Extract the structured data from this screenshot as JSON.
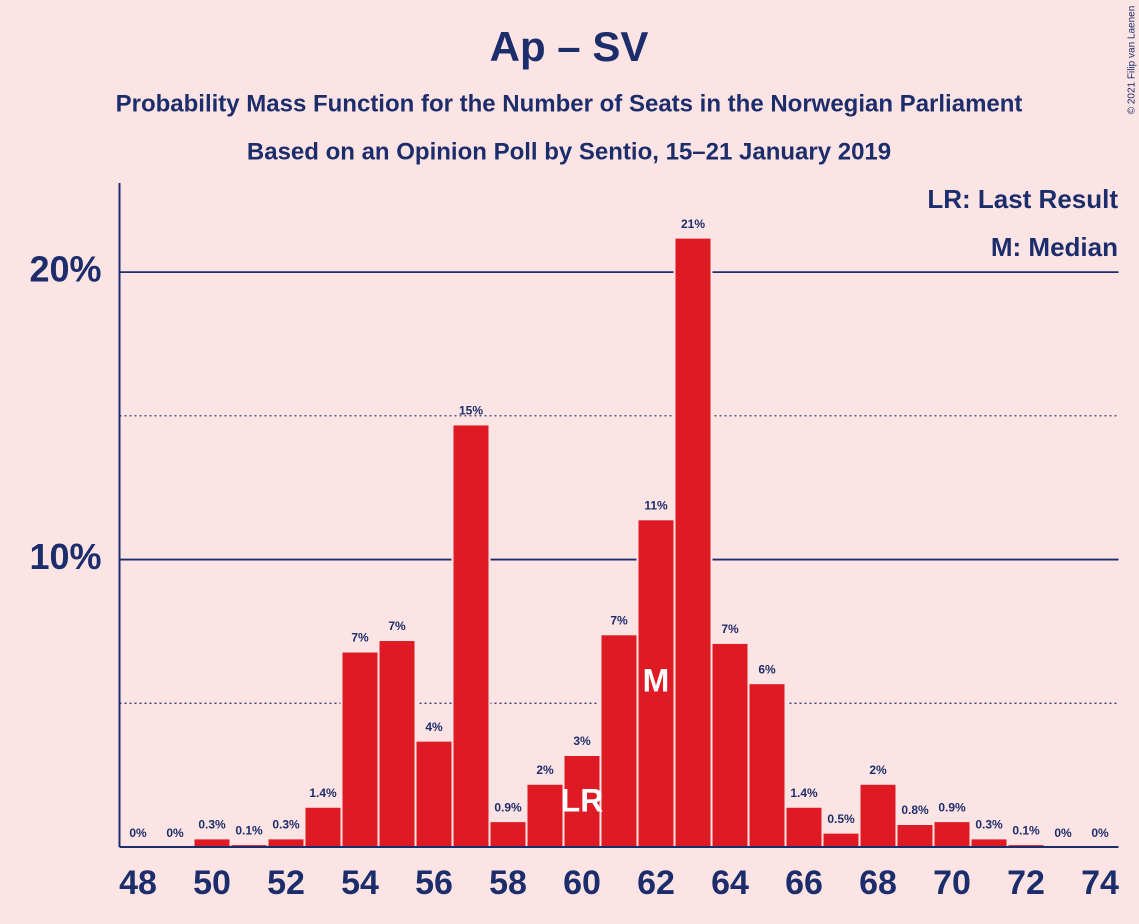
{
  "chart_data": {
    "type": "bar",
    "title": "Ap – SV",
    "subtitle": "Probability Mass Function for the Number of Seats in the Norwegian Parliament",
    "subtitle2": "Based on an Opinion Poll by Sentio, 15–21 January 2019",
    "copyright": "© 2021 Filip van Laenen",
    "legend": [
      "LR: Last Result",
      "M: Median"
    ],
    "legend_position": "top-right",
    "x": [
      48,
      49,
      50,
      51,
      52,
      53,
      54,
      55,
      56,
      57,
      58,
      59,
      60,
      61,
      62,
      63,
      64,
      65,
      66,
      67,
      68,
      69,
      70,
      71,
      72,
      73,
      74
    ],
    "values": [
      0,
      0,
      0.3,
      0.1,
      0.3,
      1.4,
      6.8,
      7.2,
      3.7,
      14.7,
      0.9,
      2.2,
      3.2,
      7.4,
      11.4,
      21.2,
      7.1,
      5.7,
      1.4,
      0.5,
      2.2,
      0.8,
      0.9,
      0.3,
      0.1,
      0,
      0
    ],
    "value_labels": [
      "0%",
      "0%",
      "0.3%",
      "0.1%",
      "0.3%",
      "1.4%",
      "7%",
      "7%",
      "4%",
      "15%",
      "0.9%",
      "2%",
      "3%",
      "7%",
      "11%",
      "21%",
      "7%",
      "6%",
      "1.4%",
      "0.5%",
      "2%",
      "0.8%",
      "0.9%",
      "0.3%",
      "0.1%",
      "0%",
      "0%"
    ],
    "color": "#de1a24",
    "annotations": [
      {
        "text": "LR",
        "x": 60
      },
      {
        "text": "M",
        "x": 62
      }
    ],
    "xlim": [
      47.5,
      74.5
    ],
    "xticks": [
      48,
      50,
      52,
      54,
      56,
      58,
      60,
      62,
      64,
      66,
      68,
      70,
      72,
      74
    ],
    "ylim": [
      0,
      23.1
    ],
    "yticks": [
      {
        "value": 10,
        "label": "10%"
      },
      {
        "value": 20,
        "label": "20%"
      }
    ],
    "minor_yticks": [
      5,
      15
    ],
    "grid": true
  }
}
